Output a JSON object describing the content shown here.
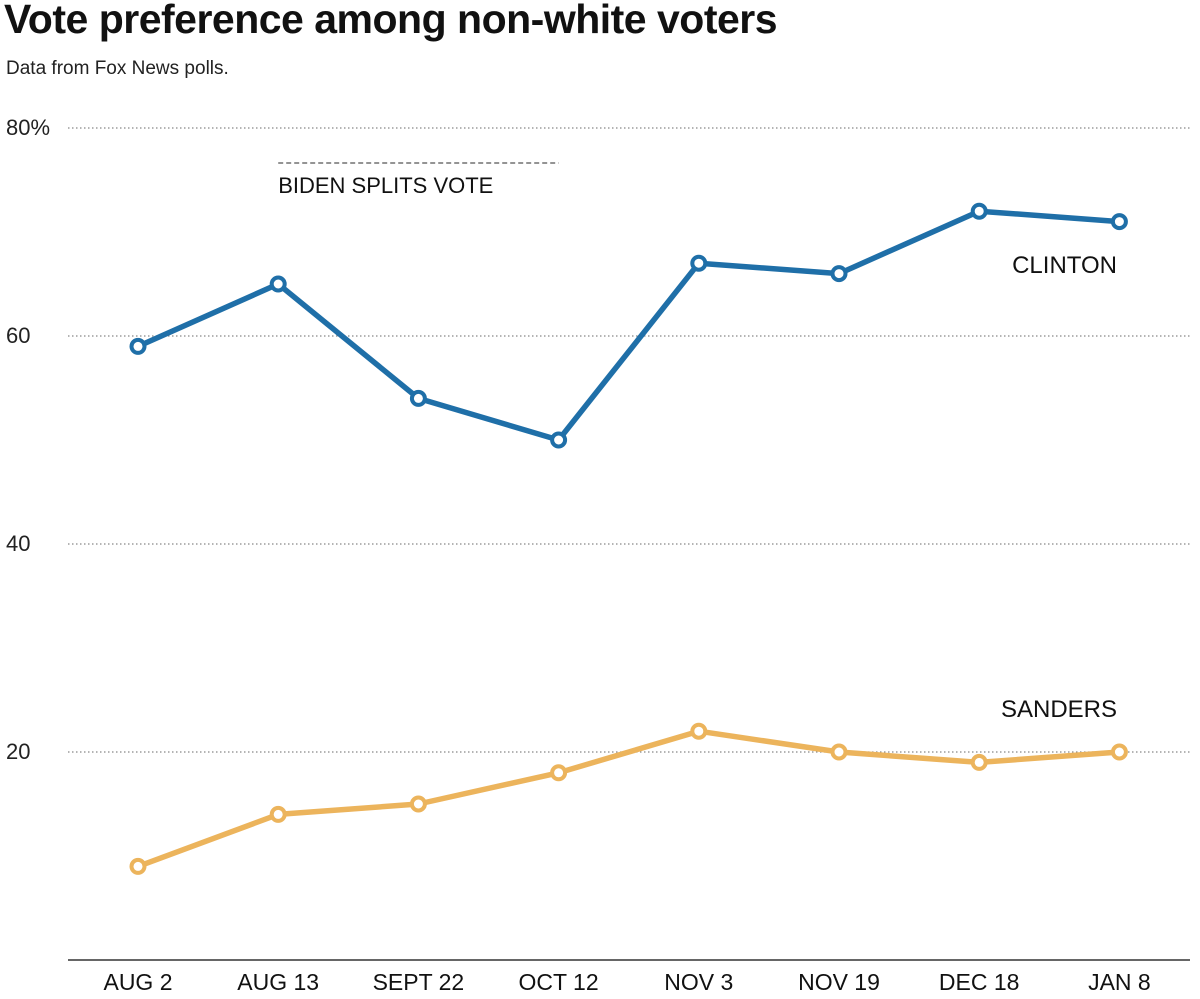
{
  "chart_data": {
    "type": "line",
    "title": "Vote preference among non-white voters",
    "subtitle": "Data from Fox News polls.",
    "categories": [
      "AUG 2",
      "AUG 13",
      "SEPT 22",
      "OCT 12",
      "NOV 3",
      "NOV 19",
      "DEC 18",
      "JAN 8"
    ],
    "series": [
      {
        "name": "CLINTON",
        "color": "#1f6fa8",
        "values": [
          59,
          65,
          54,
          50,
          67,
          66,
          72,
          71
        ]
      },
      {
        "name": "SANDERS",
        "color": "#ecb45c",
        "values": [
          9,
          14,
          15,
          18,
          22,
          20,
          19,
          20
        ]
      }
    ],
    "ylim": [
      0,
      80
    ],
    "yticks": [
      20,
      40,
      60,
      80
    ],
    "ytick_labels": [
      "20",
      "40",
      "60",
      "80%"
    ],
    "grid": true,
    "annotation": {
      "text": "BIDEN SPLITS VOTE",
      "from": "AUG 13",
      "to": "OCT 12"
    },
    "xlabel": "",
    "ylabel": ""
  }
}
